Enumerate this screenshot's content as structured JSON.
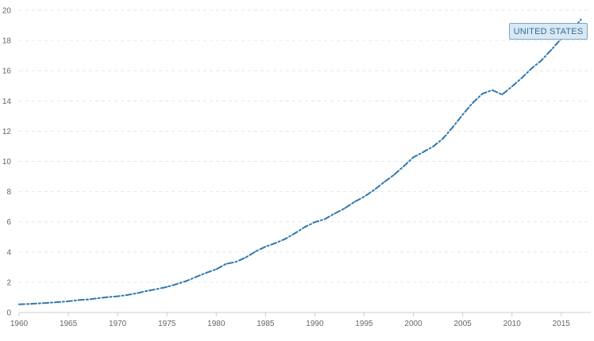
{
  "chart_data": {
    "type": "line",
    "x": [
      1960,
      1961,
      1962,
      1963,
      1964,
      1965,
      1966,
      1967,
      1968,
      1969,
      1970,
      1971,
      1972,
      1973,
      1974,
      1975,
      1976,
      1977,
      1978,
      1979,
      1980,
      1981,
      1982,
      1983,
      1984,
      1985,
      1986,
      1987,
      1988,
      1989,
      1990,
      1991,
      1992,
      1993,
      1994,
      1995,
      1996,
      1997,
      1998,
      1999,
      2000,
      2001,
      2002,
      2003,
      2004,
      2005,
      2006,
      2007,
      2008,
      2009,
      2010,
      2011,
      2012,
      2013,
      2014,
      2015,
      2016,
      2017
    ],
    "series": [
      {
        "name": "UNITED STATES",
        "values": [
          0.54,
          0.56,
          0.6,
          0.64,
          0.69,
          0.74,
          0.82,
          0.86,
          0.94,
          1.02,
          1.07,
          1.16,
          1.28,
          1.43,
          1.55,
          1.69,
          1.88,
          2.09,
          2.36,
          2.63,
          2.86,
          3.21,
          3.35,
          3.64,
          4.04,
          4.35,
          4.59,
          4.87,
          5.25,
          5.66,
          5.98,
          6.17,
          6.54,
          6.88,
          7.31,
          7.66,
          8.1,
          8.61,
          9.09,
          9.66,
          10.28,
          10.62,
          10.98,
          11.51,
          12.27,
          13.09,
          13.86,
          14.48,
          14.72,
          14.42,
          14.96,
          15.52,
          16.16,
          16.69,
          17.39,
          18.12,
          18.62,
          19.39
        ],
        "color": "#2e78b0"
      }
    ],
    "yticks": [
      0,
      2,
      4,
      6,
      8,
      10,
      12,
      14,
      16,
      18,
      20
    ],
    "xticks": [
      1960,
      1965,
      1970,
      1975,
      1980,
      1985,
      1990,
      1995,
      2000,
      2005,
      2010,
      2015
    ],
    "ylim": [
      0,
      20
    ],
    "xlim": [
      1960,
      2018
    ],
    "grid": "horizontal dashed",
    "title": "",
    "xlabel": "",
    "ylabel": "",
    "series_label": "UNITED STATES",
    "series_label_placement": "top-right"
  }
}
